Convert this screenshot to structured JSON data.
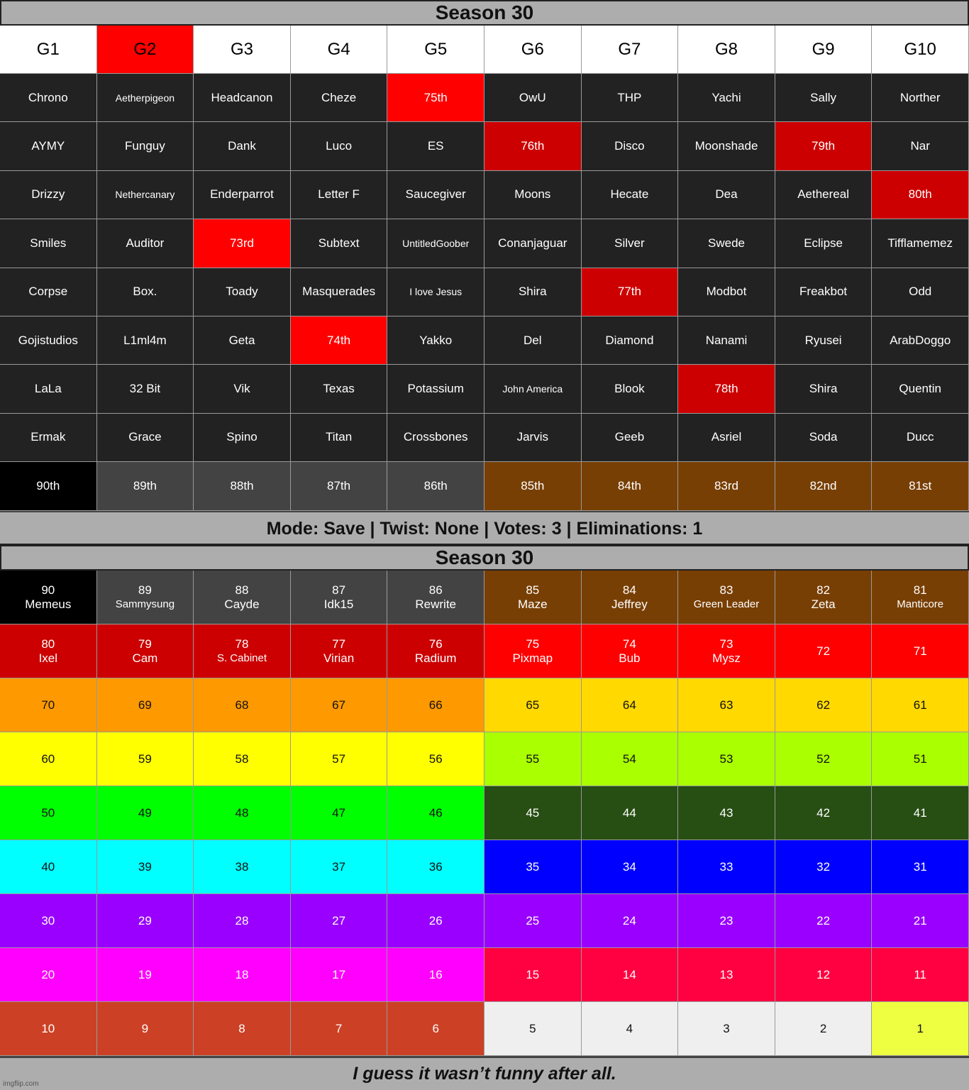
{
  "title": "Season 30",
  "headers": [
    {
      "text": "G1",
      "bg": "#ffffff"
    },
    {
      "text": "G2",
      "bg": "#ff0000"
    },
    {
      "text": "G3",
      "bg": "#ffffff"
    },
    {
      "text": "G4",
      "bg": "#ffffff"
    },
    {
      "text": "G5",
      "bg": "#ffffff"
    },
    {
      "text": "G6",
      "bg": "#ffffff"
    },
    {
      "text": "G7",
      "bg": "#ffffff"
    },
    {
      "text": "G8",
      "bg": "#ffffff"
    },
    {
      "text": "G9",
      "bg": "#ffffff"
    },
    {
      "text": "G10",
      "bg": "#ffffff"
    }
  ],
  "rows": [
    [
      "Chrono",
      "Aetherpigeon",
      "Headcanon",
      "Cheze",
      "75th",
      "OwU",
      "THP",
      "Yachi",
      "Sally",
      "Norther"
    ],
    [
      "AYMY",
      "Funguy",
      "Dank",
      "Luco",
      "ES",
      "76th",
      "Disco",
      "Moonshade",
      "79th",
      "Nar"
    ],
    [
      "Drizzy",
      "Nethercanary",
      "Enderparrot",
      "Letter F",
      "Saucegiver",
      "Moons",
      "Hecate",
      "Dea",
      "Aethereal",
      "80th"
    ],
    [
      "Smiles",
      "Auditor",
      "73rd",
      "Subtext",
      "UntitledGoober",
      "Conanjaguar",
      "Silver",
      "Swede",
      "Eclipse",
      "Tifflamemez"
    ],
    [
      "Corpse",
      "Box.",
      "Toady",
      "Masquerades",
      "I love Jesus",
      "Shira",
      "77th",
      "Modbot",
      "Freakbot",
      "Odd"
    ],
    [
      "Gojistudios",
      "L1ml4m",
      "Geta",
      "74th",
      "Yakko",
      "Del",
      "Diamond",
      "Nanami",
      "Ryusei",
      "ArabDoggo"
    ],
    [
      "LaLa",
      "32 Bit",
      "Vik",
      "Texas",
      "Potassium",
      "John America",
      "Blook",
      "78th",
      "Shira",
      "Quentin"
    ],
    [
      "Ermak",
      "Grace",
      "Spino",
      "Titan",
      "Crossbones",
      "Jarvis",
      "Geeb",
      "Asriel",
      "Soda",
      "Ducc"
    ],
    [
      "90th",
      "89th",
      "88th",
      "87th",
      "86th",
      "85th",
      "84th",
      "83rd",
      "82nd",
      "81st"
    ]
  ],
  "highlights": {
    "75th": "#ff0000",
    "73rd": "#ff0000",
    "74th": "#ff0000",
    "76th": "#cc0000",
    "77th": "#cc0000",
    "78th": "#cc0000",
    "79th": "#cc0000",
    "80th": "#cc0000"
  },
  "placement_row_colors": [
    "#000000",
    "#434343",
    "#434343",
    "#434343",
    "#434343",
    "#783f04",
    "#783f04",
    "#783f04",
    "#783f04",
    "#783f04"
  ],
  "cell_bg": "#222222",
  "mode_line": "Mode: Save | Twist: None | Votes: 3 | Eliminations: 1",
  "title2": "Season 30",
  "board": [
    {
      "nums": [
        90,
        89,
        88,
        87,
        86,
        85,
        84,
        83,
        82,
        81
      ],
      "names": [
        "Memeus",
        "Sammysung",
        "Cayde",
        "Idk15",
        "Rewrite",
        "Maze",
        "Jeffrey",
        "Green Leader",
        "Zeta",
        "Manticore"
      ],
      "bg": [
        "#000000",
        "#434343",
        "#434343",
        "#434343",
        "#434343",
        "#783f04",
        "#783f04",
        "#783f04",
        "#783f04",
        "#783f04"
      ],
      "fg": "#ffffff"
    },
    {
      "nums": [
        80,
        79,
        78,
        77,
        76,
        75,
        74,
        73,
        72,
        71
      ],
      "names": [
        "Ixel",
        "Cam",
        "S. Cabinet",
        "Virian",
        "Radium",
        "Pixmap",
        "Bub",
        "Mysz",
        "",
        ""
      ],
      "bg": [
        "#cc0000",
        "#cc0000",
        "#cc0000",
        "#cc0000",
        "#cc0000",
        "#ff0000",
        "#ff0000",
        "#ff0000",
        "#ff0000",
        "#ff0000"
      ],
      "fg": "#ffffff"
    },
    {
      "nums": [
        70,
        69,
        68,
        67,
        66,
        65,
        64,
        63,
        62,
        61
      ],
      "bg": [
        "#ff9900",
        "#ff9900",
        "#ff9900",
        "#ff9900",
        "#ff9900",
        "#ffd900",
        "#ffd900",
        "#ffd900",
        "#ffd900",
        "#ffd900"
      ],
      "fg": "#111111"
    },
    {
      "nums": [
        60,
        59,
        58,
        57,
        56,
        55,
        54,
        53,
        52,
        51
      ],
      "bg": [
        "#ffff00",
        "#ffff00",
        "#ffff00",
        "#ffff00",
        "#ffff00",
        "#aaff00",
        "#aaff00",
        "#aaff00",
        "#aaff00",
        "#aaff00"
      ],
      "fg": "#111111"
    },
    {
      "nums": [
        50,
        49,
        48,
        47,
        46,
        45,
        44,
        43,
        42,
        41
      ],
      "bg": [
        "#00ff00",
        "#00ff00",
        "#00ff00",
        "#00ff00",
        "#00ff00",
        "#274e13",
        "#274e13",
        "#274e13",
        "#274e13",
        "#274e13"
      ],
      "fg": [
        "#111111",
        "#111111",
        "#111111",
        "#111111",
        "#111111",
        "#ffffff",
        "#ffffff",
        "#ffffff",
        "#ffffff",
        "#ffffff"
      ]
    },
    {
      "nums": [
        40,
        39,
        38,
        37,
        36,
        35,
        34,
        33,
        32,
        31
      ],
      "bg": [
        "#00ffff",
        "#00ffff",
        "#00ffff",
        "#00ffff",
        "#00ffff",
        "#0000ff",
        "#0000ff",
        "#0000ff",
        "#0000ff",
        "#0000ff"
      ],
      "fg": [
        "#111111",
        "#111111",
        "#111111",
        "#111111",
        "#111111",
        "#ffffff",
        "#ffffff",
        "#ffffff",
        "#ffffff",
        "#ffffff"
      ]
    },
    {
      "nums": [
        30,
        29,
        28,
        27,
        26,
        25,
        24,
        23,
        22,
        21
      ],
      "bg": [
        "#9900ff",
        "#9900ff",
        "#9900ff",
        "#9900ff",
        "#9900ff",
        "#9900ff",
        "#9900ff",
        "#9900ff",
        "#9900ff",
        "#9900ff"
      ],
      "fg": "#ffffff"
    },
    {
      "nums": [
        20,
        19,
        18,
        17,
        16,
        15,
        14,
        13,
        12,
        11
      ],
      "bg": [
        "#ff00ff",
        "#ff00ff",
        "#ff00ff",
        "#ff00ff",
        "#ff00ff",
        "#ff0040",
        "#ff0040",
        "#ff0040",
        "#ff0040",
        "#ff0040"
      ],
      "fg": "#ffffff"
    },
    {
      "nums": [
        10,
        9,
        8,
        7,
        6,
        5,
        4,
        3,
        2,
        1
      ],
      "bg": [
        "#cc4125",
        "#cc4125",
        "#cc4125",
        "#cc4125",
        "#cc4125",
        "#efefef",
        "#efefef",
        "#efefef",
        "#efefef",
        "#eeff41"
      ],
      "fg": [
        "#ffffff",
        "#ffffff",
        "#ffffff",
        "#ffffff",
        "#ffffff",
        "#111111",
        "#111111",
        "#111111",
        "#111111",
        "#111111"
      ]
    }
  ],
  "footer": "I guess it wasn’t funny after all.",
  "watermark": "imgflip.com"
}
